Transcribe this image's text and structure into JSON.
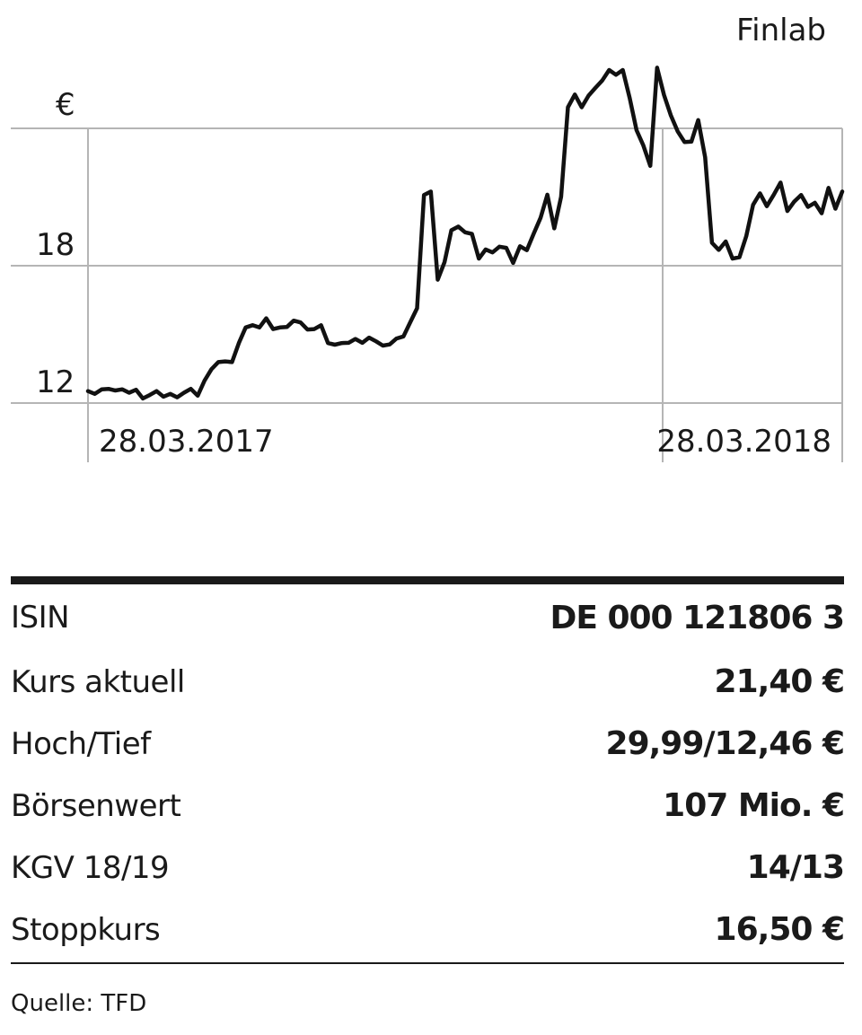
{
  "chart_data": {
    "type": "line",
    "title": "Finlab",
    "ylabel": "€",
    "y_ticks": [
      12,
      18,
      24
    ],
    "y_tick_labels": [
      "12",
      "18",
      ""
    ],
    "ylim": [
      12,
      24
    ],
    "x_tick_labels": [
      "28.03.2017",
      "28.03.2018"
    ],
    "grid": true,
    "series": [
      {
        "values": [
          12.52,
          12.4,
          12.6,
          12.62,
          12.55,
          12.6,
          12.45,
          12.58,
          12.2,
          12.35,
          12.52,
          12.28,
          12.4,
          12.25,
          12.45,
          12.62,
          12.32,
          12.98,
          13.48,
          13.79,
          13.82,
          13.79,
          14.62,
          15.3,
          15.4,
          15.3,
          15.7,
          15.23,
          15.3,
          15.32,
          15.6,
          15.52,
          15.21,
          15.23,
          15.4,
          14.62,
          14.55,
          14.62,
          14.63,
          14.8,
          14.63,
          14.86,
          14.7,
          14.51,
          14.56,
          14.82,
          14.91,
          15.53,
          16.14,
          21.09,
          21.24,
          17.39,
          18.16,
          19.55,
          19.71,
          19.46,
          19.39,
          18.31,
          18.71,
          18.58,
          18.83,
          18.78,
          18.12,
          18.85,
          18.68,
          19.4,
          20.09,
          21.1,
          19.63,
          21.01,
          24.92,
          25.48,
          24.92,
          25.43,
          25.77,
          26.09,
          26.55,
          26.34,
          26.55,
          25.32,
          23.92,
          23.25,
          22.36,
          26.65,
          25.46,
          24.57,
          23.87,
          23.4,
          23.42,
          24.36,
          22.74,
          19.0,
          18.69,
          19.06,
          18.31,
          18.37,
          19.29,
          20.66,
          21.16,
          20.6,
          21.09,
          21.63,
          20.39,
          20.8,
          21.09,
          20.57,
          20.75,
          20.29,
          21.4,
          20.49,
          21.24
        ]
      }
    ]
  },
  "table": {
    "rows": [
      {
        "label": "ISIN",
        "value": "DE 000 121806 3"
      },
      {
        "label": "Kurs aktuell",
        "value": "21,40 €"
      },
      {
        "label": "Hoch/Tief",
        "value": "29,99/12,46 €"
      },
      {
        "label": "Börsenwert",
        "value": "107 Mio. €"
      },
      {
        "label": "KGV 18/19",
        "value": "14/13"
      },
      {
        "label": "Stoppkurs",
        "value": "16,50 €"
      }
    ]
  },
  "source": "Quelle: TFD"
}
